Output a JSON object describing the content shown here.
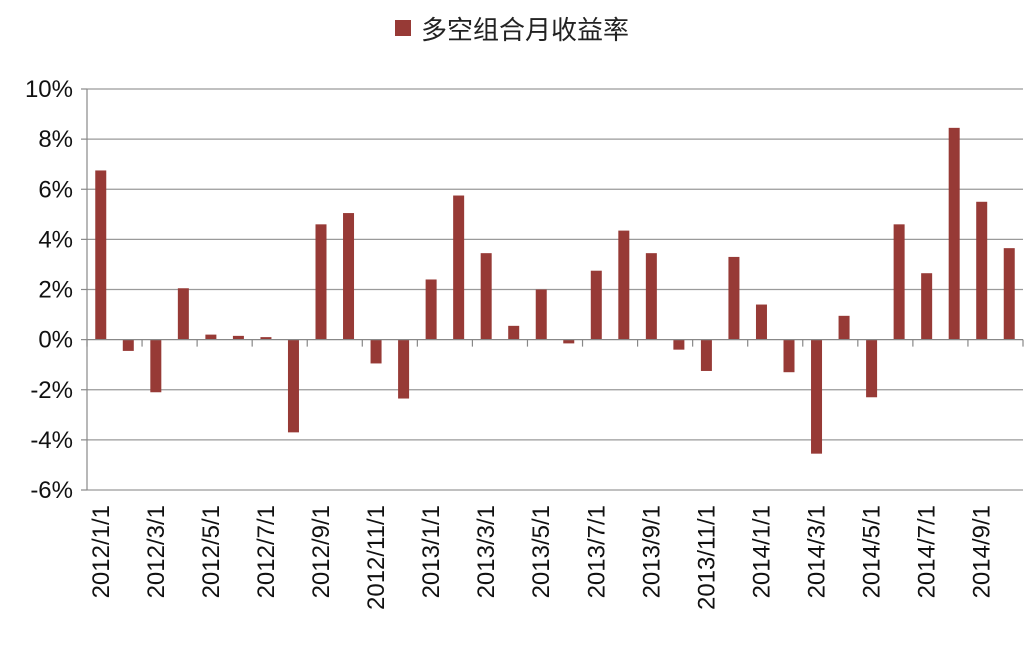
{
  "chart_data": {
    "type": "bar",
    "legend_position": "top-center",
    "grid": true,
    "color": "#973A36",
    "ylim": [
      -6,
      10
    ],
    "ytick_step": 2,
    "yticks": [
      "-6%",
      "-4%",
      "-2%",
      "0%",
      "2%",
      "4%",
      "6%",
      "8%",
      "10%"
    ],
    "series": [
      {
        "name": "多空组合月收益率",
        "values": [
          6.75,
          -0.45,
          -2.1,
          2.05,
          0.2,
          0.15,
          0.1,
          -3.7,
          4.6,
          5.05,
          -0.95,
          -2.35,
          2.4,
          5.75,
          3.45,
          0.55,
          2.0,
          -0.15,
          2.75,
          4.35,
          3.45,
          -0.4,
          -1.25,
          3.3,
          1.4,
          -1.3,
          -4.55,
          0.95,
          -2.3,
          4.6,
          2.65,
          8.45,
          5.5,
          3.65
        ]
      }
    ],
    "xtick_labels": [
      "2012/1/1",
      "2012/3/1",
      "2012/5/1",
      "2012/7/1",
      "2012/9/1",
      "2012/11/1",
      "2013/1/1",
      "2013/3/1",
      "2013/5/1",
      "2013/7/1",
      "2013/9/1",
      "2013/11/1",
      "2014/1/1",
      "2014/3/1",
      "2014/5/1",
      "2014/7/1",
      "2014/9/1"
    ]
  }
}
